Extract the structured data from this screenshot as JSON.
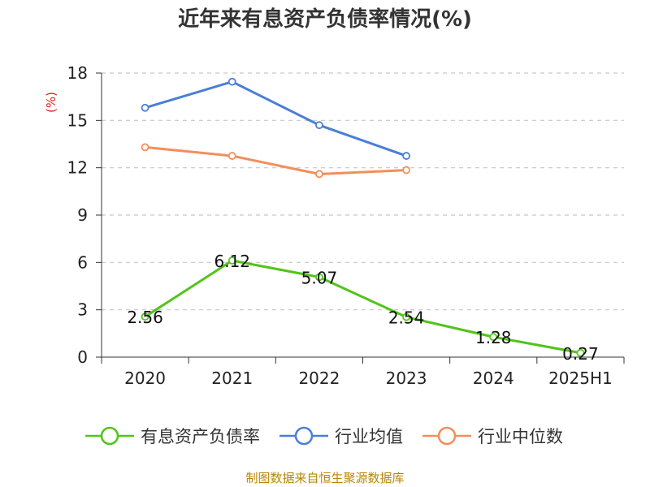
{
  "chart_data": {
    "type": "line",
    "title": "近年来有息资产负债率情况(%)",
    "ylabel": "(%)",
    "categories": [
      "2020",
      "2021",
      "2022",
      "2023",
      "2024",
      "2025H1"
    ],
    "ylim": [
      0,
      18
    ],
    "yticks": [
      0,
      3,
      6,
      9,
      12,
      15,
      18
    ],
    "grid": true,
    "legend_position": "bottom",
    "series": [
      {
        "name": "有息资产负债率",
        "values": [
          2.56,
          6.12,
          5.07,
          2.54,
          1.28,
          0.27
        ],
        "labels": [
          "2.56",
          "6.12",
          "5.07",
          "2.54",
          "1.28",
          "0.27"
        ],
        "color": "#52c41a"
      },
      {
        "name": "行业均值",
        "values": [
          15.8,
          17.45,
          14.7,
          12.75,
          null,
          null
        ],
        "color": "#4a7fd6"
      },
      {
        "name": "行业中位数",
        "values": [
          13.3,
          12.75,
          11.6,
          11.85,
          null,
          null
        ],
        "color": "#f28e5b"
      }
    ]
  },
  "footer": {
    "source": "制图数据来自恒生聚源数据库"
  }
}
